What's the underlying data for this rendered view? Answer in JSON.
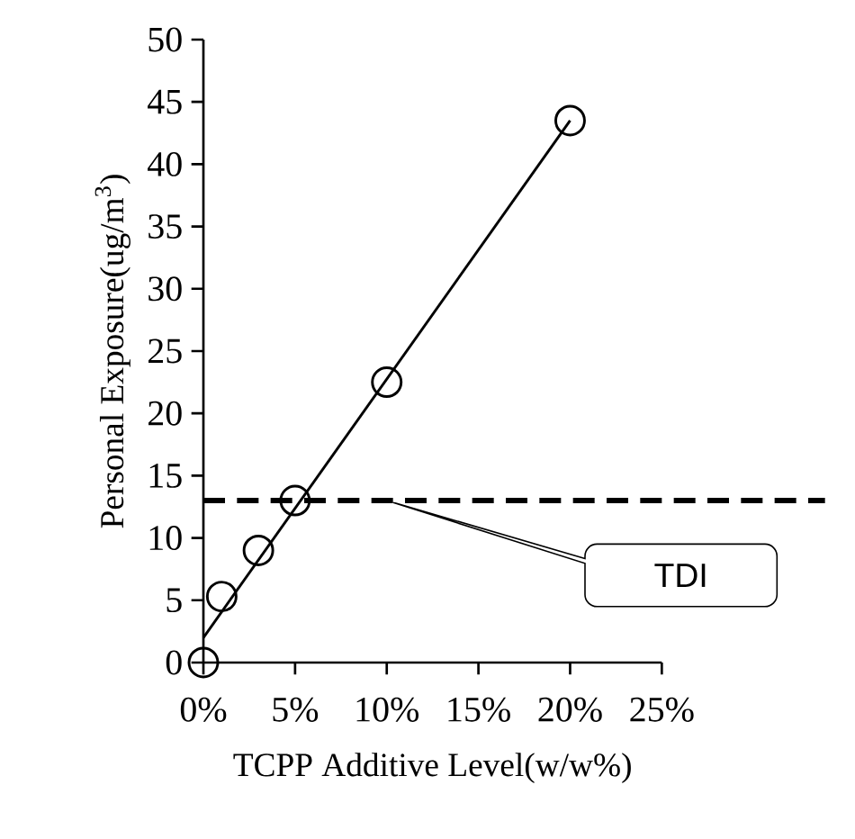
{
  "chart_data": {
    "type": "scatter",
    "xlabel": "TCPP Additive Level(w/w%)",
    "ylabel": "Personal Exposure(ug/m$^{3}$)",
    "xlim": [
      0,
      25
    ],
    "ylim": [
      0,
      50
    ],
    "xticks": [
      {
        "value": 0,
        "label": "0%"
      },
      {
        "value": 5,
        "label": "5%"
      },
      {
        "value": 10,
        "label": "10%"
      },
      {
        "value": 15,
        "label": "15%"
      },
      {
        "value": 20,
        "label": "20%"
      },
      {
        "value": 25,
        "label": "25%"
      }
    ],
    "yticks": [
      0,
      5,
      10,
      15,
      20,
      25,
      30,
      35,
      40,
      45,
      50
    ],
    "grid": false,
    "series": [
      {
        "color": "#000000",
        "marker": "circle",
        "x": [
          0,
          1,
          3,
          5,
          10,
          20
        ],
        "values": [
          0,
          5.3,
          9,
          13,
          22.5,
          43.5
        ]
      },
      {
        "type": "line",
        "color": "#000000",
        "marker": "none",
        "line_style": "solid",
        "x": [
          0,
          20
        ],
        "values": [
          2,
          43.5
        ]
      }
    ],
    "ref_lines": [
      {
        "axis": "y",
        "value": 13,
        "label": "TDI",
        "color": "#000000",
        "line_style": "dashed"
      }
    ]
  }
}
